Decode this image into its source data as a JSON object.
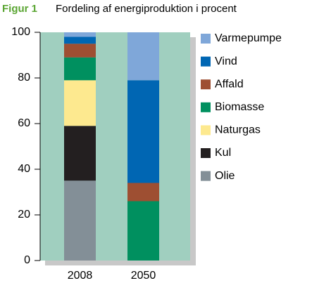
{
  "chart_data": {
    "type": "bar",
    "stacked": true,
    "title_label": "Figur 1",
    "title": "Fordeling af energiproduktion i procent",
    "categories": [
      "2008",
      "2050"
    ],
    "series": [
      {
        "name": "Olie",
        "color": "#838f97",
        "values": [
          35,
          0
        ]
      },
      {
        "name": "Kul",
        "color": "#231f20",
        "values": [
          24,
          0
        ]
      },
      {
        "name": "Naturgas",
        "color": "#fde98f",
        "values": [
          20,
          0
        ]
      },
      {
        "name": "Biomasse",
        "color": "#00905f",
        "values": [
          10,
          26
        ]
      },
      {
        "name": "Affald",
        "color": "#9e4f32",
        "values": [
          6,
          8
        ]
      },
      {
        "name": "Vind",
        "color": "#0066b3",
        "values": [
          3,
          45
        ]
      },
      {
        "name": "Varmepumpe",
        "color": "#7fa7d9",
        "values": [
          2,
          21
        ]
      }
    ],
    "ylim": [
      0,
      100
    ],
    "yticks": [
      0,
      20,
      40,
      60,
      80,
      100
    ],
    "legend": "right"
  }
}
